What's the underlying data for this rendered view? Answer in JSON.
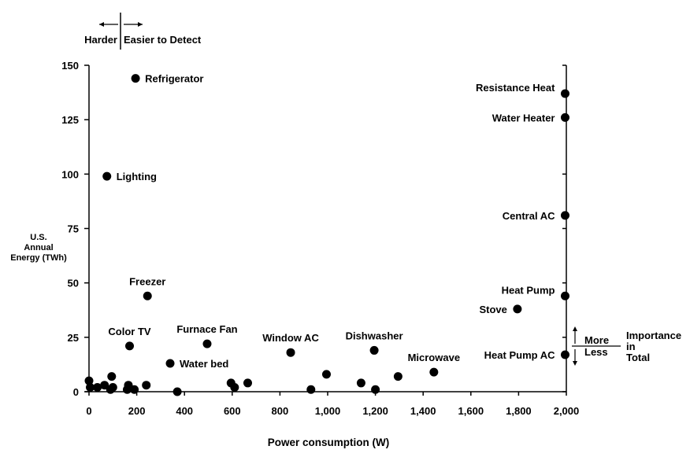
{
  "chart_data": {
    "type": "scatter",
    "xlabel": "Power consumption (W)",
    "ylabel": [
      "U.S.",
      "Annual",
      "Energy (TWh)"
    ],
    "xlim": [
      0,
      2000
    ],
    "ylim": [
      0,
      150
    ],
    "x_ticks": [
      0,
      200,
      400,
      600,
      800,
      1000,
      1200,
      1400,
      1600,
      1800,
      2000
    ],
    "x_tick_labels": [
      "0",
      "200",
      "400",
      "600",
      "800",
      "1,000",
      "1,200",
      "1,400",
      "1,600",
      "1,800",
      "2,000"
    ],
    "y_ticks": [
      0,
      25,
      50,
      75,
      100,
      125,
      150
    ],
    "y_tick_labels": [
      "0",
      "25",
      "50",
      "75",
      "100",
      "125",
      "150"
    ],
    "grid": false,
    "detect_annotation": {
      "left": "Harder",
      "right": "Easier to Detect"
    },
    "importance_annotation": {
      "more": "More",
      "less": "Less",
      "title_lines": [
        "Importance",
        "in",
        "Total"
      ]
    },
    "labeled_points": [
      {
        "name": "Refrigerator",
        "x": 195,
        "y": 144,
        "label_side": "right"
      },
      {
        "name": "Lighting",
        "x": 75,
        "y": 99,
        "label_side": "right"
      },
      {
        "name": "Freezer",
        "x": 245,
        "y": 44,
        "label_side": "top"
      },
      {
        "name": "Color TV",
        "x": 170,
        "y": 21,
        "label_side": "top"
      },
      {
        "name": "Furnace Fan",
        "x": 495,
        "y": 22,
        "label_side": "top"
      },
      {
        "name": "Water bed",
        "x": 340,
        "y": 13,
        "label_side": "right"
      },
      {
        "name": "Window AC",
        "x": 845,
        "y": 18,
        "label_side": "top"
      },
      {
        "name": "Dishwasher",
        "x": 1195,
        "y": 19,
        "label_side": "top"
      },
      {
        "name": "Microwave",
        "x": 1445,
        "y": 9,
        "label_side": "top"
      },
      {
        "name": "Stove",
        "x": 1795,
        "y": 38,
        "label_side": "left"
      },
      {
        "name": "Resistance Heat",
        "x": 1995,
        "y": 137,
        "label_side": "left-up"
      },
      {
        "name": "Water Heater",
        "x": 1995,
        "y": 126,
        "label_side": "left"
      },
      {
        "name": "Central AC",
        "x": 1995,
        "y": 81,
        "label_side": "left"
      },
      {
        "name": "Heat Pump",
        "x": 1995,
        "y": 44,
        "label_side": "left-up"
      },
      {
        "name": "Heat Pump AC",
        "x": 1995,
        "y": 17,
        "label_side": "left"
      }
    ],
    "unlabeled_points": [
      {
        "x": 0,
        "y": 5
      },
      {
        "x": 5,
        "y": 2
      },
      {
        "x": 35,
        "y": 2
      },
      {
        "x": 65,
        "y": 3
      },
      {
        "x": 90,
        "y": 1
      },
      {
        "x": 95,
        "y": 7
      },
      {
        "x": 100,
        "y": 2
      },
      {
        "x": 160,
        "y": 1
      },
      {
        "x": 165,
        "y": 3
      },
      {
        "x": 190,
        "y": 1
      },
      {
        "x": 240,
        "y": 3
      },
      {
        "x": 370,
        "y": 0
      },
      {
        "x": 595,
        "y": 4
      },
      {
        "x": 610,
        "y": 2
      },
      {
        "x": 665,
        "y": 4
      },
      {
        "x": 930,
        "y": 1
      },
      {
        "x": 995,
        "y": 8
      },
      {
        "x": 1140,
        "y": 4
      },
      {
        "x": 1200,
        "y": 1
      },
      {
        "x": 1295,
        "y": 7
      }
    ]
  }
}
